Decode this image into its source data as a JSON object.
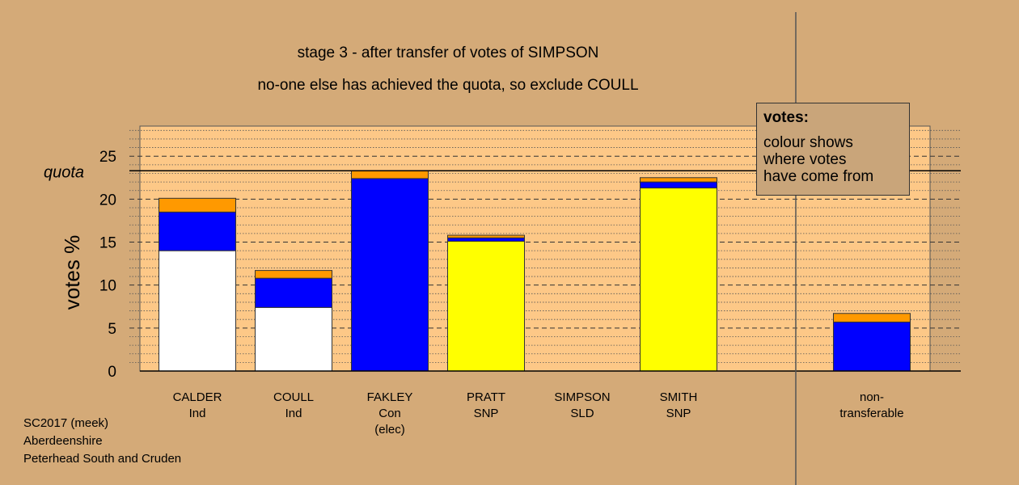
{
  "title_line1": "stage 3 - after transfer of votes of SIMPSON",
  "title_line2": "no-one else has achieved the quota, so exclude COULL",
  "footer": [
    "SC2017 (meek)",
    "Aberdeenshire",
    "Peterhead South and Cruden"
  ],
  "legend": {
    "title": "votes:",
    "text": "colour shows\nwhere votes\nhave come from"
  },
  "colors": {
    "background": "#d4aa78",
    "plot_bg": "#fdc887",
    "white": "#ffffff",
    "blue": "#0000ff",
    "yellow": "#ffff00",
    "orange": "#ff9900"
  },
  "chart_data": {
    "type": "bar",
    "stacked": true,
    "ylabel": "votes %",
    "ylim": [
      0,
      28.5
    ],
    "yticks": [
      0,
      5,
      10,
      15,
      20,
      25
    ],
    "quota": 23.3,
    "quota_label": "quota",
    "grid": "dashed major, dotted minor",
    "categories": [
      [
        "CALDER",
        "Ind"
      ],
      [
        "COULL",
        "Ind"
      ],
      [
        "FAKLEY",
        "Con",
        "(elec)"
      ],
      [
        "PRATT",
        "SNP"
      ],
      [
        "SIMPSON",
        "SLD"
      ],
      [
        "SMITH",
        "SNP"
      ],
      [
        "non-",
        "transferable"
      ]
    ],
    "series": [
      {
        "color": "#ffffff",
        "values": [
          14.0,
          7.4,
          0,
          0,
          0,
          0,
          0
        ]
      },
      {
        "color": "#ffff00",
        "values": [
          0,
          0,
          0,
          15.1,
          0,
          21.3,
          0
        ]
      },
      {
        "color": "#0000ff",
        "values": [
          4.5,
          3.4,
          22.4,
          0.4,
          0,
          0.7,
          5.7
        ]
      },
      {
        "color": "#ff9900",
        "values": [
          1.6,
          0.9,
          0.9,
          0.3,
          0,
          0.5,
          1.0
        ]
      }
    ]
  }
}
